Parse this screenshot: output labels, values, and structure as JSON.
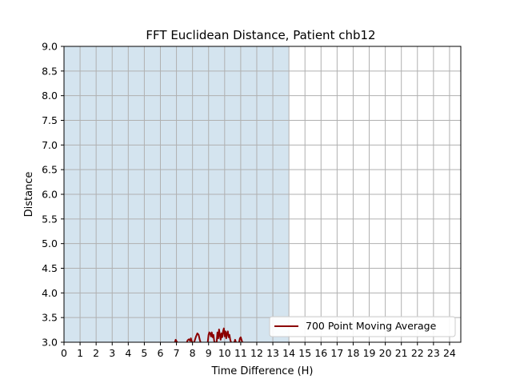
{
  "chart_data": {
    "type": "line",
    "title": "FFT Euclidean Distance, Patient chb12",
    "xlabel": "Time Difference (H)",
    "ylabel": "Distance",
    "xlim": [
      0,
      24.7
    ],
    "ylim": [
      3.0,
      9.0
    ],
    "grid": true,
    "legend_position": "lower-right",
    "x_ticks": [
      "0",
      "1",
      "2",
      "3",
      "4",
      "5",
      "6",
      "7",
      "8",
      "9",
      "10",
      "11",
      "12",
      "13",
      "14",
      "15",
      "16",
      "17",
      "18",
      "19",
      "20",
      "21",
      "22",
      "23",
      "24"
    ],
    "y_ticks": [
      "3.0",
      "3.5",
      "4.0",
      "4.5",
      "5.0",
      "5.5",
      "6.0",
      "6.5",
      "7.0",
      "7.5",
      "8.0",
      "8.5",
      "9.0"
    ],
    "shaded_region": {
      "x_start": 0,
      "x_end": 14.0,
      "color": "#a9c9e0"
    },
    "series": [
      {
        "name": "700 Point Moving Average",
        "color": "#8b0000",
        "segments": [
          [
            [
              6.9,
              3.0
            ],
            [
              6.95,
              3.05
            ],
            [
              7.0,
              3.02
            ],
            [
              7.05,
              3.0
            ]
          ],
          [
            [
              7.65,
              3.0
            ],
            [
              7.7,
              3.04
            ],
            [
              7.78,
              3.06
            ],
            [
              7.85,
              3.03
            ],
            [
              7.9,
              3.08
            ],
            [
              7.95,
              3.02
            ],
            [
              8.0,
              3.0
            ]
          ],
          [
            [
              8.1,
              3.0
            ],
            [
              8.15,
              3.05
            ],
            [
              8.22,
              3.12
            ],
            [
              8.3,
              3.18
            ],
            [
              8.38,
              3.15
            ],
            [
              8.45,
              3.05
            ],
            [
              8.5,
              3.0
            ]
          ],
          [
            [
              8.95,
              3.0
            ],
            [
              9.0,
              3.15
            ],
            [
              9.05,
              3.2
            ],
            [
              9.1,
              3.18
            ],
            [
              9.15,
              3.12
            ],
            [
              9.2,
              3.2
            ],
            [
              9.25,
              3.1
            ],
            [
              9.3,
              3.15
            ],
            [
              9.35,
              3.02
            ],
            [
              9.4,
              3.0
            ]
          ],
          [
            [
              9.5,
              3.0
            ],
            [
              9.55,
              3.2
            ],
            [
              9.6,
              3.08
            ],
            [
              9.65,
              3.26
            ],
            [
              9.7,
              3.15
            ],
            [
              9.75,
              3.05
            ],
            [
              9.8,
              3.18
            ],
            [
              9.85,
              3.1
            ],
            [
              9.9,
              3.22
            ],
            [
              9.95,
              3.28
            ],
            [
              10.0,
              3.12
            ],
            [
              10.05,
              3.22
            ],
            [
              10.1,
              3.08
            ],
            [
              10.15,
              3.18
            ],
            [
              10.2,
              3.22
            ],
            [
              10.25,
              3.1
            ],
            [
              10.3,
              3.15
            ],
            [
              10.35,
              3.05
            ],
            [
              10.4,
              3.0
            ]
          ],
          [
            [
              10.6,
              3.0
            ],
            [
              10.65,
              3.05
            ],
            [
              10.7,
              3.0
            ]
          ],
          [
            [
              10.9,
              3.0
            ],
            [
              10.95,
              3.08
            ],
            [
              11.0,
              3.1
            ],
            [
              11.05,
              3.05
            ],
            [
              11.1,
              3.0
            ]
          ]
        ]
      }
    ]
  }
}
